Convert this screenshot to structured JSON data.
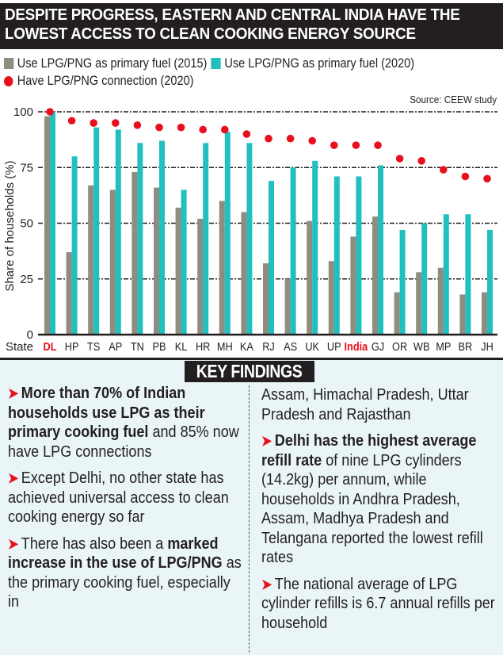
{
  "header": {
    "title_line1": "DESPITE PROGRESS, EASTERN AND CENTRAL INDIA HAVE THE",
    "title_line2": "LOWEST ACCESS TO CLEAN COOKING ENERGY SOURCE"
  },
  "source": "Source: CEEW study",
  "colors": {
    "gray": "#8f8c80",
    "teal": "#22bfbf",
    "red": "#e8101e",
    "dark": "#231f20",
    "panel": "#eaf5f8"
  },
  "chart_data": {
    "type": "bar",
    "title": "Despite progress, eastern and central India have the lowest access to clean cooking energy source",
    "xlabel": "State",
    "ylabel": "Share of households (%)",
    "ylim": [
      0,
      100
    ],
    "yticks": [
      0,
      25,
      50,
      75,
      100
    ],
    "grid": true,
    "legend_position": "top-left",
    "categories": [
      "DL",
      "HP",
      "TS",
      "AP",
      "TN",
      "PB",
      "KL",
      "HR",
      "MH",
      "KA",
      "RJ",
      "AS",
      "UK",
      "UP",
      "India",
      "GJ",
      "OR",
      "WB",
      "MP",
      "BR",
      "JH"
    ],
    "highlighted_categories": [
      "DL",
      "India"
    ],
    "series": [
      {
        "name": "Use LPG/PNG as primary fuel (2015)",
        "kind": "bar",
        "color": "#8f8c80",
        "values": [
          98,
          37,
          67,
          65,
          73,
          66,
          57,
          52,
          60,
          55,
          32,
          25,
          51,
          33,
          44,
          53,
          19,
          28,
          30,
          18,
          19
        ]
      },
      {
        "name": "Use LPG/PNG as primary fuel (2020)",
        "kind": "bar",
        "color": "#22bfbf",
        "values": [
          100,
          80,
          93,
          92,
          86,
          87,
          65,
          86,
          91,
          86,
          69,
          75,
          78,
          71,
          71,
          76,
          47,
          50,
          54,
          54,
          47
        ]
      },
      {
        "name": "Have LPG/PNG connection (2020)",
        "kind": "dot",
        "color": "#e8101e",
        "values": [
          100,
          96,
          95,
          95,
          94,
          93,
          93,
          92,
          92,
          90,
          88,
          88,
          87,
          85,
          85,
          85,
          79,
          78,
          74,
          71,
          70
        ]
      }
    ],
    "annotation": "Source: CEEW study"
  },
  "legend": {
    "gray": "Use LPG/PNG as primary fuel (2015)",
    "teal": "Use LPG/PNG as primary fuel (2020)",
    "red": "Have LPG/PNG connection (2020)"
  },
  "key_findings": {
    "heading": "KEY FINDINGS",
    "items": [
      {
        "bold": "More than 70% of Indian households use LPG as their primary cooking fuel",
        "text": " and 85% now have LPG connections"
      },
      {
        "pre": "Except Delhi, no other state has achieved universal access to clean cooking energy so far"
      },
      {
        "pre": "There has also been a ",
        "bold": "marked increase in the use of LPG/PNG",
        "text": " as the primary cooking fuel, especially in Assam, Himachal Pradesh, Uttar Pradesh and Rajasthan"
      },
      {
        "bold": "Delhi has the highest average refill rate",
        "text": " of nine LPG cylinders (14.2kg) per annum, while households in Andhra Pradesh, Assam, Madhya Pradesh and Telangana reported the lowest refill rates"
      },
      {
        "pre": "The national average of LPG cylinder refills is 6.7 annual refills per household"
      }
    ],
    "left_col": {
      "p1_bold": "More than 70% of Indian households use LPG as their primary cooking fuel",
      "p1_text": " and 85% now have LPG connections",
      "p2_text": "Except Delhi, no other state has achieved universal access to clean cooking energy so far",
      "p3_pre": "There has also been a ",
      "p3_bold": "marked increase in the use of LPG/PNG",
      "p3_text": " as the primary cooking fuel, especially in"
    },
    "right_col": {
      "p3_cont": "Assam, Himachal Pradesh, Uttar Pradesh and Rajasthan",
      "p4_bold": "Delhi has the highest average refill rate",
      "p4_text": " of nine LPG cylinders (14.2kg) per annum, while households in Andhra Pradesh, Assam, Madhya Pradesh and Telangana reported the lowest refill rates",
      "p5_text": "The national average of LPG cylinder refills is 6.7 annual refills per household"
    }
  }
}
